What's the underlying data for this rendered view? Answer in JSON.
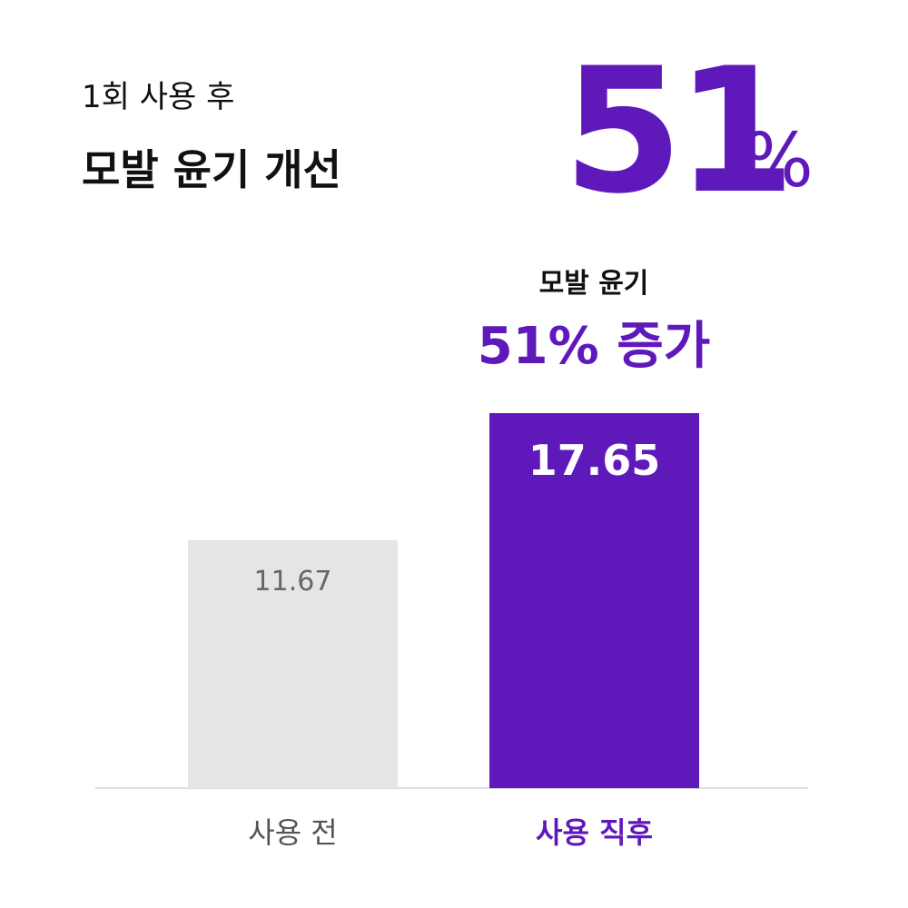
{
  "chart_data": {
    "type": "bar",
    "subtitle": "1회 사용 후",
    "title": "모발 윤기 개선",
    "headline": {
      "number": "51",
      "unit": "%"
    },
    "annotation": [
      "모발 윤기",
      "51% 증가"
    ],
    "categories": [
      "사용 전",
      "사용 직후"
    ],
    "values": [
      11.67,
      17.65
    ],
    "colors": [
      "#e5e5e5",
      "#5f19bb"
    ]
  }
}
